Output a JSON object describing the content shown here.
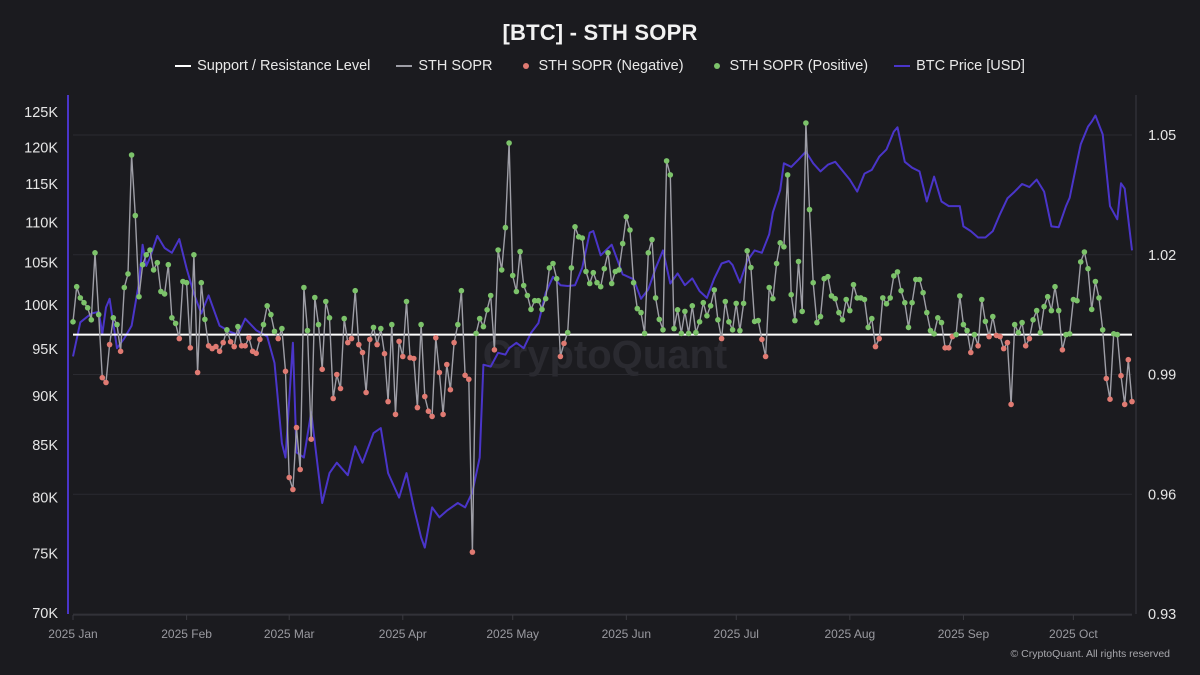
{
  "chart_data": {
    "type": "line",
    "title": "[BTC] - STH SOPR",
    "legend": [
      {
        "name": "Support / Resistance Level",
        "kind": "line",
        "color": "#ffffff"
      },
      {
        "name": "STH SOPR",
        "kind": "line",
        "color": "#9e9ea6"
      },
      {
        "name": "STH SOPR (Negative)",
        "kind": "dot",
        "color": "#e07a72"
      },
      {
        "name": "STH SOPR (Positive)",
        "kind": "dot",
        "color": "#7cc36a"
      },
      {
        "name": "BTC Price [USD]",
        "kind": "line",
        "color": "#4a35c9"
      }
    ],
    "legend_position": "top-center",
    "x_axis": {
      "type": "date",
      "range": [
        "2025-01-01",
        "2025-10-17"
      ],
      "tick_labels": [
        "2025 Jan",
        "2025 Feb",
        "2025 Mar",
        "2025 Apr",
        "2025 May",
        "2025 Jun",
        "2025 Jul",
        "2025 Aug",
        "2025 Sep",
        "2025 Oct"
      ],
      "tick_dates": [
        "2025-01-01",
        "2025-02-01",
        "2025-03-01",
        "2025-04-01",
        "2025-05-01",
        "2025-06-01",
        "2025-07-01",
        "2025-08-01",
        "2025-09-01",
        "2025-10-01"
      ]
    },
    "y_left": {
      "label": "BTC Price [USD]",
      "scale": "log",
      "range": [
        70000,
        127000
      ],
      "tick_values": [
        70000,
        75000,
        80000,
        85000,
        90000,
        95000,
        100000,
        105000,
        110000,
        115000,
        120000,
        125000
      ],
      "tick_labels": [
        "70K",
        "75K",
        "80K",
        "85K",
        "90K",
        "95K",
        "100K",
        "105K",
        "110K",
        "115K",
        "120K",
        "125K"
      ]
    },
    "y_right": {
      "label": "STH SOPR",
      "scale": "linear",
      "range": [
        0.93,
        1.06
      ],
      "tick_values": [
        0.93,
        0.96,
        0.99,
        1.02,
        1.05
      ],
      "tick_labels": [
        "0.93",
        "0.96",
        "0.99",
        "1.02",
        "1.05"
      ]
    },
    "grid": true,
    "support_resistance_level": 1.0,
    "sopr_start_date": "2025-01-01",
    "sopr_daily": [
      1.0032,
      1.012,
      1.0092,
      1.008,
      1.0067,
      1.0037,
      1.0205,
      1.005,
      0.9892,
      0.988,
      0.9975,
      1.0042,
      1.0025,
      0.9958,
      1.0118,
      1.0152,
      1.045,
      1.0298,
      1.0095,
      1.0175,
      1.02,
      1.0212,
      1.0162,
      1.018,
      1.0108,
      1.0102,
      1.0175,
      1.0042,
      1.0028,
      0.999,
      1.0133,
      1.013,
      0.9967,
      1.02,
      0.9905,
      1.013,
      1.0038,
      0.9972,
      0.9965,
      0.997,
      0.9958,
      0.998,
      1.0012,
      0.9982,
      0.997,
      1.002,
      0.9972,
      0.9972,
      0.9992,
      0.9958,
      0.9953,
      0.9988,
      1.0025,
      1.0072,
      1.005,
      1.0008,
      0.999,
      1.0015,
      0.9908,
      0.9642,
      0.9612,
      0.9767,
      0.9662,
      1.0118,
      1.001,
      0.9738,
      1.0093,
      1.0025,
      0.9913,
      1.0083,
      1.0042,
      0.984,
      0.99,
      0.9865,
      1.004,
      0.998,
      0.999,
      1.011,
      0.9975,
      0.9955,
      0.9855,
      0.9988,
      1.0018,
      0.9975,
      1.0015,
      0.9952,
      0.9832,
      1.0025,
      0.98,
      0.9983,
      0.9945,
      1.0083,
      0.9942,
      0.994,
      0.9817,
      1.0025,
      0.9845,
      0.9808,
      0.9795,
      0.9992,
      0.9905,
      0.98,
      0.9925,
      0.9862,
      0.998,
      1.0025,
      1.011,
      0.9898,
      0.9888,
      0.9455,
      1.0003,
      1.004,
      1.002,
      1.0062,
      1.0098,
      0.9962,
      1.0212,
      1.0162,
      1.0268,
      1.048,
      1.0148,
      1.0108,
      1.0208,
      1.0123,
      1.0098,
      1.0063,
      1.0085,
      1.0085,
      1.0063,
      1.009,
      1.0167,
      1.0178,
      1.014,
      0.9945,
      0.9978,
      1.0005,
      1.0167,
      1.027,
      1.0245,
      1.0242,
      1.0158,
      1.0128,
      1.0155,
      1.013,
      1.012,
      1.0165,
      1.0205,
      1.0128,
      1.0158,
      1.0162,
      1.0228,
      1.0295,
      1.0262,
      1.013,
      1.0065,
      1.0055,
      1.0003,
      1.0205,
      1.0238,
      1.0092,
      1.0038,
      1.0012,
      1.0435,
      1.04,
      1.0015,
      1.0062,
      1.0003,
      1.0058,
      1.0003,
      1.0072,
      1.0005,
      1.0032,
      1.008,
      1.0047,
      1.0072,
      1.0112,
      1.0037,
      0.999,
      1.0083,
      1.0032,
      1.0012,
      1.0078,
      1.001,
      1.0078,
      1.021,
      1.0168,
      1.0033,
      1.0035,
      0.9988,
      0.9945,
      1.0118,
      1.009,
      1.0178,
      1.023,
      1.022,
      1.04,
      1.01,
      1.0035,
      1.0183,
      1.0058,
      1.053,
      1.0313,
      1.013,
      1.003,
      1.0045,
      1.014,
      1.0145,
      1.0097,
      1.009,
      1.0055,
      1.0037,
      1.0088,
      1.006,
      1.0125,
      1.0092,
      1.0092,
      1.0088,
      1.0018,
      1.004,
      0.997,
      0.999,
      1.0092,
      1.0077,
      1.0092,
      1.0147,
      1.0157,
      1.011,
      1.008,
      1.0018,
      1.008,
      1.0138,
      1.0138,
      1.0105,
      1.0055,
      1.001,
      1.0002,
      1.0042,
      1.003,
      0.9967,
      0.9967,
      0.9995,
      1.0,
      1.0097,
      1.0025,
      1.001,
      0.9955,
      1.0,
      0.9972,
      1.0088,
      1.0033,
      0.9995,
      1.0045,
      0.9998,
      0.9995,
      0.9965,
      0.998,
      0.9825,
      1.0025,
      1.0005,
      1.003,
      0.9972,
      0.999,
      1.0037,
      1.006,
      1.0005,
      1.007,
      1.0095,
      1.006,
      1.012,
      1.006,
      0.9962,
      1.0,
      1.0002,
      1.0088,
      1.0085,
      1.0182,
      1.0207,
      1.0165,
      1.0063,
      1.0133,
      1.0092,
      1.0012,
      0.989,
      0.9838,
      1.0002,
      1.0,
      0.9897,
      0.9825,
      0.9937,
      0.9832
    ],
    "btc_price": [
      [
        "2025-01-01",
        94200
      ],
      [
        "2025-01-03",
        98000
      ],
      [
        "2025-01-06",
        99000
      ],
      [
        "2025-01-08",
        99200
      ],
      [
        "2025-01-09",
        96700
      ],
      [
        "2025-01-10",
        99700
      ],
      [
        "2025-01-11",
        100700
      ],
      [
        "2025-01-13",
        95100
      ],
      [
        "2025-01-15",
        96200
      ],
      [
        "2025-01-17",
        97600
      ],
      [
        "2025-01-19",
        102600
      ],
      [
        "2025-01-20",
        107200
      ],
      [
        "2025-01-21",
        104600
      ],
      [
        "2025-01-22",
        105600
      ],
      [
        "2025-01-24",
        108300
      ],
      [
        "2025-01-26",
        106800
      ],
      [
        "2025-01-28",
        106200
      ],
      [
        "2025-01-30",
        107900
      ],
      [
        "2025-02-01",
        104300
      ],
      [
        "2025-02-03",
        101300
      ],
      [
        "2025-02-05",
        99000
      ],
      [
        "2025-02-07",
        101100
      ],
      [
        "2025-02-10",
        97600
      ],
      [
        "2025-02-13",
        96900
      ],
      [
        "2025-02-15",
        96600
      ],
      [
        "2025-02-17",
        98400
      ],
      [
        "2025-02-20",
        97100
      ],
      [
        "2025-02-23",
        96400
      ],
      [
        "2025-02-25",
        93500
      ],
      [
        "2025-02-27",
        85200
      ],
      [
        "2025-02-28",
        83800
      ],
      [
        "2025-03-02",
        95700
      ],
      [
        "2025-03-03",
        84300
      ],
      [
        "2025-03-05",
        83800
      ],
      [
        "2025-03-07",
        88300
      ],
      [
        "2025-03-09",
        82300
      ],
      [
        "2025-03-10",
        79500
      ],
      [
        "2025-03-12",
        82300
      ],
      [
        "2025-03-14",
        83300
      ],
      [
        "2025-03-17",
        82100
      ],
      [
        "2025-03-19",
        84900
      ],
      [
        "2025-03-21",
        83300
      ],
      [
        "2025-03-24",
        86200
      ],
      [
        "2025-03-26",
        86700
      ],
      [
        "2025-03-28",
        82300
      ],
      [
        "2025-03-31",
        80000
      ],
      [
        "2025-04-02",
        82300
      ],
      [
        "2025-04-04",
        79100
      ],
      [
        "2025-04-06",
        76400
      ],
      [
        "2025-04-07",
        75500
      ],
      [
        "2025-04-09",
        79100
      ],
      [
        "2025-04-11",
        78200
      ],
      [
        "2025-04-13",
        78800
      ],
      [
        "2025-04-16",
        79500
      ],
      [
        "2025-04-18",
        79100
      ],
      [
        "2025-04-20",
        80500
      ],
      [
        "2025-04-22",
        83800
      ],
      [
        "2025-04-23",
        93300
      ],
      [
        "2025-04-25",
        93100
      ],
      [
        "2025-04-27",
        94600
      ],
      [
        "2025-04-29",
        94400
      ],
      [
        "2025-04-30",
        95100
      ],
      [
        "2025-05-02",
        95700
      ],
      [
        "2025-05-04",
        95100
      ],
      [
        "2025-05-06",
        96800
      ],
      [
        "2025-05-08",
        97900
      ],
      [
        "2025-05-10",
        101400
      ],
      [
        "2025-05-12",
        103300
      ],
      [
        "2025-05-14",
        102300
      ],
      [
        "2025-05-16",
        102200
      ],
      [
        "2025-05-18",
        102300
      ],
      [
        "2025-05-20",
        104400
      ],
      [
        "2025-05-22",
        108700
      ],
      [
        "2025-05-23",
        108900
      ],
      [
        "2025-05-25",
        105900
      ],
      [
        "2025-05-28",
        107200
      ],
      [
        "2025-05-31",
        103600
      ],
      [
        "2025-06-03",
        103000
      ],
      [
        "2025-06-05",
        100700
      ],
      [
        "2025-06-07",
        101800
      ],
      [
        "2025-06-09",
        104300
      ],
      [
        "2025-06-11",
        106500
      ],
      [
        "2025-06-13",
        102500
      ],
      [
        "2025-06-15",
        103700
      ],
      [
        "2025-06-17",
        102300
      ],
      [
        "2025-06-19",
        103100
      ],
      [
        "2025-06-21",
        101600
      ],
      [
        "2025-06-23",
        100800
      ],
      [
        "2025-06-25",
        103100
      ],
      [
        "2025-06-27",
        104900
      ],
      [
        "2025-06-29",
        105200
      ],
      [
        "2025-06-30",
        104700
      ],
      [
        "2025-07-02",
        102600
      ],
      [
        "2025-07-04",
        105200
      ],
      [
        "2025-07-06",
        106500
      ],
      [
        "2025-07-08",
        106200
      ],
      [
        "2025-07-10",
        108500
      ],
      [
        "2025-07-11",
        111300
      ],
      [
        "2025-07-13",
        114200
      ],
      [
        "2025-07-14",
        117800
      ],
      [
        "2025-07-16",
        117300
      ],
      [
        "2025-07-18",
        118300
      ],
      [
        "2025-07-20",
        119400
      ],
      [
        "2025-07-22",
        117800
      ],
      [
        "2025-07-24",
        116700
      ],
      [
        "2025-07-26",
        117600
      ],
      [
        "2025-07-28",
        118000
      ],
      [
        "2025-08-01",
        115600
      ],
      [
        "2025-08-03",
        114000
      ],
      [
        "2025-08-05",
        116400
      ],
      [
        "2025-08-07",
        116900
      ],
      [
        "2025-08-09",
        118700
      ],
      [
        "2025-08-11",
        119700
      ],
      [
        "2025-08-13",
        122200
      ],
      [
        "2025-08-14",
        122800
      ],
      [
        "2025-08-16",
        118000
      ],
      [
        "2025-08-18",
        117200
      ],
      [
        "2025-08-20",
        116700
      ],
      [
        "2025-08-22",
        112700
      ],
      [
        "2025-08-24",
        116000
      ],
      [
        "2025-08-26",
        112700
      ],
      [
        "2025-08-28",
        112100
      ],
      [
        "2025-08-31",
        112100
      ],
      [
        "2025-09-01",
        109500
      ],
      [
        "2025-09-03",
        108900
      ],
      [
        "2025-09-05",
        108100
      ],
      [
        "2025-09-07",
        108100
      ],
      [
        "2025-09-09",
        108900
      ],
      [
        "2025-09-11",
        111100
      ],
      [
        "2025-09-13",
        113100
      ],
      [
        "2025-09-15",
        114000
      ],
      [
        "2025-09-17",
        115000
      ],
      [
        "2025-09-19",
        114600
      ],
      [
        "2025-09-21",
        115600
      ],
      [
        "2025-09-23",
        114000
      ],
      [
        "2025-09-25",
        109500
      ],
      [
        "2025-09-27",
        109400
      ],
      [
        "2025-09-29",
        112100
      ],
      [
        "2025-09-30",
        113200
      ],
      [
        "2025-10-02",
        118000
      ],
      [
        "2025-10-03",
        120400
      ],
      [
        "2025-10-05",
        122900
      ],
      [
        "2025-10-06",
        123600
      ],
      [
        "2025-10-07",
        124500
      ],
      [
        "2025-10-09",
        121800
      ],
      [
        "2025-10-11",
        112100
      ],
      [
        "2025-10-13",
        110400
      ],
      [
        "2025-10-14",
        115100
      ],
      [
        "2025-10-15",
        114400
      ],
      [
        "2025-10-17",
        106500
      ]
    ],
    "watermark": "CryptoQuant"
  },
  "footer": {
    "copyright": "© CryptoQuant. All rights reserved"
  }
}
